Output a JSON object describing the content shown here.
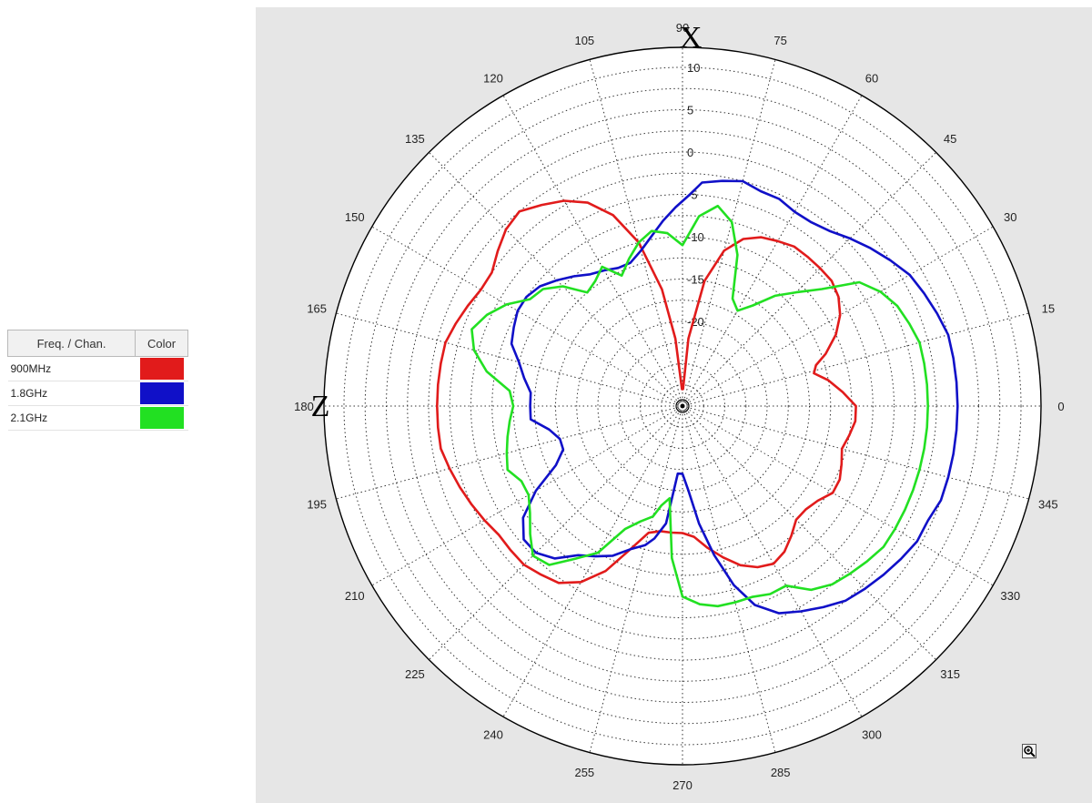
{
  "legend": {
    "header_name": "Freq. / Chan.",
    "header_color": "Color",
    "rows": [
      {
        "label": "900MHz",
        "color": "#e11b1b"
      },
      {
        "label": "1.8GHz",
        "color": "#1010c8"
      },
      {
        "label": "2.1GHz",
        "color": "#22e022"
      }
    ]
  },
  "zoom_icon": "zoom-in-icon",
  "chart_data": {
    "type": "polar-line",
    "axis_letters": {
      "top": "X",
      "left": "Z"
    },
    "angle_ticks": [
      0,
      15,
      30,
      45,
      60,
      75,
      90,
      105,
      120,
      135,
      150,
      165,
      180,
      195,
      210,
      225,
      240,
      255,
      270,
      285,
      300,
      315,
      330,
      345
    ],
    "radial_range": [
      -30,
      10
    ],
    "radial_ticks": [
      10,
      5,
      0,
      -5,
      -10,
      -15,
      -20
    ],
    "series": [
      {
        "name": "900MHz",
        "color": "#e11b1b",
        "points": [
          [
            0,
            -9.5
          ],
          [
            5,
            -11
          ],
          [
            10,
            -12.5
          ],
          [
            14,
            -14
          ],
          [
            17,
            -13.5
          ],
          [
            20,
            -12
          ],
          [
            25,
            -10
          ],
          [
            30,
            -8.5
          ],
          [
            35,
            -7.5
          ],
          [
            40,
            -7
          ],
          [
            45,
            -7
          ],
          [
            50,
            -7
          ],
          [
            55,
            -7
          ],
          [
            60,
            -7.5
          ],
          [
            65,
            -8
          ],
          [
            70,
            -9
          ],
          [
            75,
            -11
          ],
          [
            80,
            -15
          ],
          [
            85,
            -22
          ],
          [
            88,
            -28
          ],
          [
            92,
            -28
          ],
          [
            96,
            -22
          ],
          [
            100,
            -16
          ],
          [
            105,
            -10
          ],
          [
            110,
            -6
          ],
          [
            115,
            -3.5
          ],
          [
            120,
            -2
          ],
          [
            125,
            -1
          ],
          [
            130,
            0
          ],
          [
            135,
            -0.5
          ],
          [
            140,
            -1.5
          ],
          [
            145,
            -2.5
          ],
          [
            150,
            -2.5
          ],
          [
            155,
            -2
          ],
          [
            160,
            -1.5
          ],
          [
            165,
            -1
          ],
          [
            170,
            -1
          ],
          [
            175,
            -1
          ],
          [
            180,
            -1
          ],
          [
            185,
            -1
          ],
          [
            190,
            -1
          ],
          [
            195,
            -1.5
          ],
          [
            200,
            -2
          ],
          [
            205,
            -2.5
          ],
          [
            210,
            -3
          ],
          [
            215,
            -3.5
          ],
          [
            220,
            -3.5
          ],
          [
            225,
            -3.5
          ],
          [
            230,
            -4
          ],
          [
            235,
            -4.5
          ],
          [
            240,
            -6
          ],
          [
            245,
            -8.5
          ],
          [
            250,
            -12
          ],
          [
            255,
            -14.5
          ],
          [
            260,
            -15
          ],
          [
            265,
            -15
          ],
          [
            270,
            -15
          ],
          [
            275,
            -14.5
          ],
          [
            280,
            -13
          ],
          [
            285,
            -11.5
          ],
          [
            290,
            -10
          ],
          [
            295,
            -9
          ],
          [
            300,
            -8.5
          ],
          [
            305,
            -9
          ],
          [
            310,
            -10
          ],
          [
            315,
            -11
          ],
          [
            320,
            -11
          ],
          [
            325,
            -10.5
          ],
          [
            330,
            -9.5
          ],
          [
            335,
            -9.5
          ],
          [
            340,
            -10
          ],
          [
            345,
            -10.5
          ],
          [
            350,
            -10
          ],
          [
            355,
            -9.5
          ],
          [
            360,
            -9.5
          ]
        ]
      },
      {
        "name": "1.8GHz",
        "color": "#1010c8",
        "points": [
          [
            0,
            2.5
          ],
          [
            5,
            2.5
          ],
          [
            10,
            2.5
          ],
          [
            15,
            2.5
          ],
          [
            20,
            2
          ],
          [
            25,
            1.5
          ],
          [
            30,
            1
          ],
          [
            35,
            0
          ],
          [
            40,
            -1
          ],
          [
            45,
            -2
          ],
          [
            50,
            -3
          ],
          [
            55,
            -3.5
          ],
          [
            60,
            -3.5
          ],
          [
            65,
            -3
          ],
          [
            70,
            -3
          ],
          [
            75,
            -2.5
          ],
          [
            80,
            -3
          ],
          [
            85,
            -3.5
          ],
          [
            88,
            -5
          ],
          [
            92,
            -6.5
          ],
          [
            96,
            -8
          ],
          [
            100,
            -9.5
          ],
          [
            105,
            -11
          ],
          [
            110,
            -12
          ],
          [
            115,
            -12
          ],
          [
            120,
            -11.5
          ],
          [
            125,
            -11
          ],
          [
            130,
            -10
          ],
          [
            135,
            -9
          ],
          [
            140,
            -8
          ],
          [
            145,
            -7.5
          ],
          [
            150,
            -7.5
          ],
          [
            155,
            -8
          ],
          [
            160,
            -8.5
          ],
          [
            165,
            -10
          ],
          [
            170,
            -11
          ],
          [
            175,
            -12
          ],
          [
            180,
            -12
          ],
          [
            185,
            -12
          ],
          [
            190,
            -14
          ],
          [
            195,
            -15
          ],
          [
            200,
            -15
          ],
          [
            205,
            -13.5
          ],
          [
            210,
            -10
          ],
          [
            215,
            -7
          ],
          [
            220,
            -5.5
          ],
          [
            225,
            -5.5
          ],
          [
            230,
            -6.5
          ],
          [
            235,
            -8.5
          ],
          [
            240,
            -9.5
          ],
          [
            245,
            -10.5
          ],
          [
            250,
            -12
          ],
          [
            255,
            -13
          ],
          [
            258,
            -14
          ],
          [
            262,
            -16
          ],
          [
            266,
            -22
          ],
          [
            270,
            -22
          ],
          [
            274,
            -20
          ],
          [
            278,
            -16
          ],
          [
            282,
            -12
          ],
          [
            286,
            -8
          ],
          [
            290,
            -5
          ],
          [
            295,
            -3
          ],
          [
            300,
            -2
          ],
          [
            305,
            -1
          ],
          [
            310,
            0
          ],
          [
            315,
            0.5
          ],
          [
            320,
            1
          ],
          [
            325,
            1.5
          ],
          [
            330,
            2
          ],
          [
            335,
            2
          ],
          [
            340,
            2.5
          ],
          [
            345,
            2.5
          ],
          [
            350,
            2.5
          ],
          [
            355,
            2.5
          ],
          [
            360,
            2.5
          ]
        ]
      },
      {
        "name": "2.1GHz",
        "color": "#22e022",
        "points": [
          [
            0,
            -1
          ],
          [
            5,
            -1
          ],
          [
            10,
            -1
          ],
          [
            15,
            -1
          ],
          [
            20,
            -1.5
          ],
          [
            25,
            -2
          ],
          [
            30,
            -3
          ],
          [
            35,
            -4.5
          ],
          [
            40,
            -8.5
          ],
          [
            45,
            -11
          ],
          [
            50,
            -13
          ],
          [
            55,
            -15.5
          ],
          [
            60,
            -17
          ],
          [
            65,
            -16
          ],
          [
            70,
            -11
          ],
          [
            75,
            -7.5
          ],
          [
            80,
            -6
          ],
          [
            85,
            -7.5
          ],
          [
            90,
            -11
          ],
          [
            95,
            -9.5
          ],
          [
            100,
            -9
          ],
          [
            105,
            -10
          ],
          [
            110,
            -11.5
          ],
          [
            115,
            -13
          ],
          [
            120,
            -11
          ],
          [
            125,
            -12
          ],
          [
            130,
            -12.5
          ],
          [
            135,
            -10
          ],
          [
            140,
            -8.5
          ],
          [
            145,
            -8
          ],
          [
            150,
            -6
          ],
          [
            155,
            -4.5
          ],
          [
            160,
            -3.5
          ],
          [
            165,
            -4.5
          ],
          [
            170,
            -6.5
          ],
          [
            175,
            -9.5
          ],
          [
            180,
            -10
          ],
          [
            185,
            -9.5
          ],
          [
            190,
            -9
          ],
          [
            195,
            -8.5
          ],
          [
            200,
            -8
          ],
          [
            205,
            -9
          ],
          [
            210,
            -9
          ],
          [
            215,
            -8
          ],
          [
            220,
            -6.5
          ],
          [
            225,
            -5
          ],
          [
            230,
            -5.5
          ],
          [
            235,
            -8
          ],
          [
            240,
            -10
          ],
          [
            245,
            -14
          ],
          [
            250,
            -15.5
          ],
          [
            255,
            -16.5
          ],
          [
            258,
            -18
          ],
          [
            262,
            -19
          ],
          [
            266,
            -12
          ],
          [
            270,
            -7.5
          ],
          [
            275,
            -6.5
          ],
          [
            280,
            -6
          ],
          [
            285,
            -6
          ],
          [
            290,
            -6
          ],
          [
            295,
            -5.5
          ],
          [
            300,
            -5.5
          ],
          [
            305,
            -3.5
          ],
          [
            310,
            -2.5
          ],
          [
            315,
            -2
          ],
          [
            320,
            -1.5
          ],
          [
            325,
            -1
          ],
          [
            330,
            -1
          ],
          [
            335,
            -1
          ],
          [
            340,
            -1
          ],
          [
            345,
            -1
          ],
          [
            350,
            -1
          ],
          [
            355,
            -1
          ],
          [
            360,
            -1
          ]
        ]
      }
    ]
  }
}
